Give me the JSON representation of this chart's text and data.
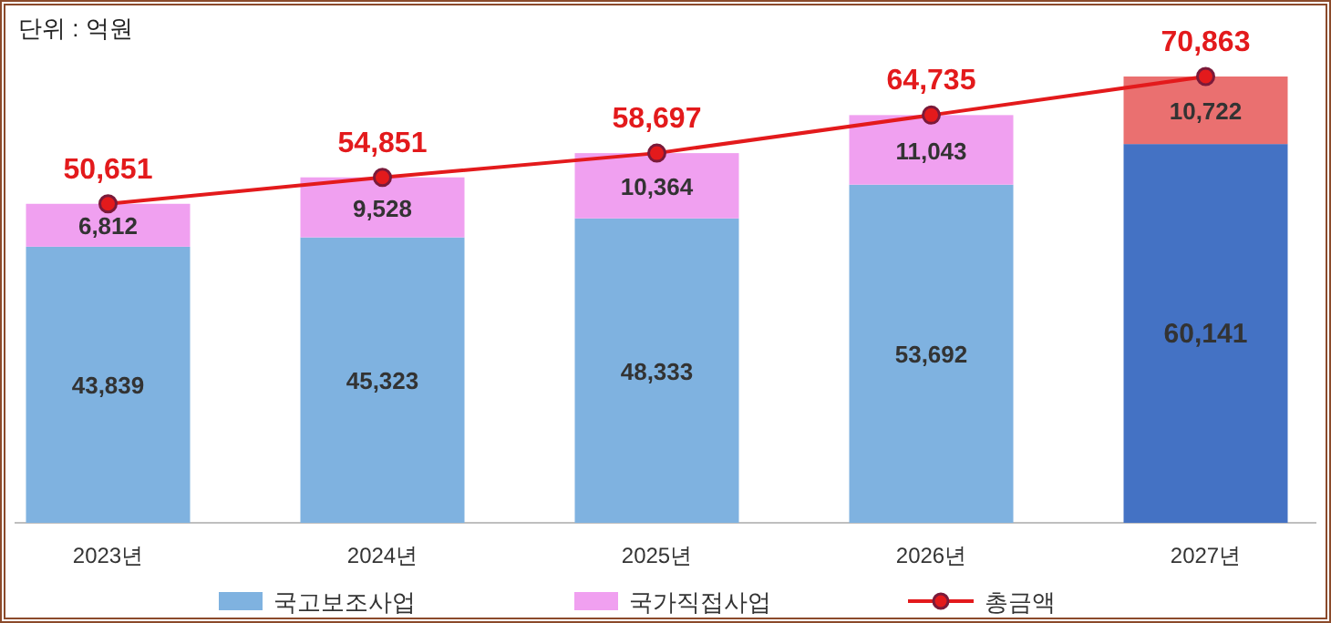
{
  "chart_data": {
    "type": "bar",
    "stacked": true,
    "annotations": [
      "단위 : 억원"
    ],
    "categories": [
      "2023년",
      "2024년",
      "2025년",
      "2026년",
      "2027년"
    ],
    "series": [
      {
        "name": "국고보조사업",
        "color": "#7fb2e0",
        "colors": [
          "#7fb2e0",
          "#7fb2e0",
          "#7fb2e0",
          "#7fb2e0",
          "#4472c4"
        ],
        "values": [
          43839,
          45323,
          48333,
          53692,
          60141
        ],
        "value_labels": [
          "43,839",
          "45,323",
          "48,333",
          "53,692",
          "60,141"
        ]
      },
      {
        "name": "국가직접사업",
        "color": "#f0a0f0",
        "colors": [
          "#f0a0f0",
          "#f0a0f0",
          "#f0a0f0",
          "#f0a0f0",
          "#ea7070"
        ],
        "values": [
          6812,
          9528,
          10364,
          11043,
          10722
        ],
        "value_labels": [
          "6,812",
          "9,528",
          "10,364",
          "11,043",
          "10,722"
        ]
      },
      {
        "name": "총금액",
        "type": "line",
        "color": "#e31a1c",
        "values": [
          50651,
          54851,
          58697,
          64735,
          70863
        ],
        "value_labels": [
          "50,651",
          "54,851",
          "58,697",
          "64,735",
          "70,863"
        ]
      }
    ],
    "marker": "circle",
    "legend": "bottom"
  }
}
